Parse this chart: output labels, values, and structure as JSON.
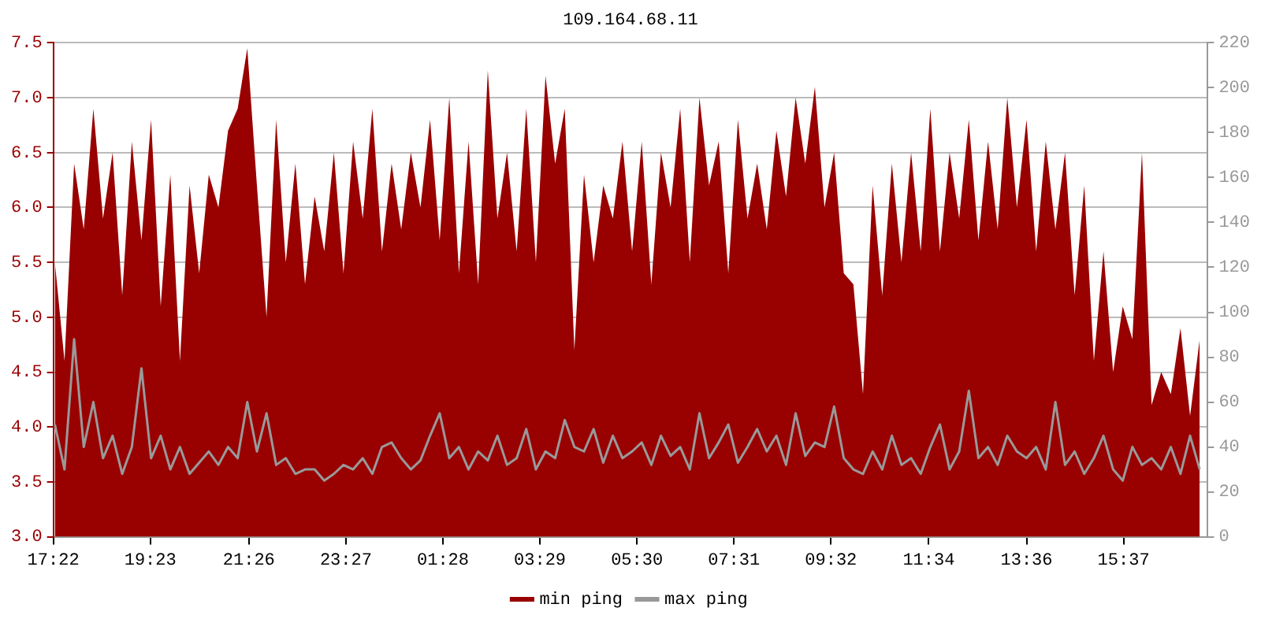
{
  "chart_data": {
    "type": "area",
    "title": "109.164.68.11",
    "x": [
      "--01-01T17:24",
      "--01-01T17:36",
      "--01-01T17:48",
      "--01-01T18:00",
      "--01-01T18:12",
      "--01-01T18:24",
      "--01-01T18:36",
      "--01-01T18:48",
      "--01-01T19:00",
      "--01-01T19:12",
      "--01-01T19:24",
      "--01-01T19:36",
      "--01-01T19:48",
      "--01-01T20:00",
      "--01-01T20:12",
      "--01-01T20:24",
      "--01-01T20:36",
      "--01-01T20:48",
      "--01-01T21:00",
      "--01-01T21:12",
      "--01-01T21:24",
      "--01-01T21:36",
      "--01-01T21:48",
      "--01-01T22:00",
      "--01-01T22:12",
      "--01-01T22:24",
      "--01-01T22:36",
      "--01-01T22:48",
      "--01-01T23:00",
      "--01-01T23:12",
      "--01-01T23:24",
      "--01-01T23:36",
      "--01-01T23:48",
      "--01-02T00:00",
      "--01-02T00:12",
      "--01-02T00:24",
      "--01-02T00:36",
      "--01-02T00:48",
      "--01-02T01:00",
      "--01-02T01:12",
      "--01-02T01:24",
      "--01-02T01:36",
      "--01-02T01:48",
      "--01-02T02:00",
      "--01-02T02:12",
      "--01-02T02:24",
      "--01-02T02:36",
      "--01-02T02:48",
      "--01-02T03:00",
      "--01-02T03:12",
      "--01-02T03:24",
      "--01-02T03:36",
      "--01-02T03:48",
      "--01-02T04:00",
      "--01-02T04:12",
      "--01-02T04:24",
      "--01-02T04:36",
      "--01-02T04:48",
      "--01-02T05:00",
      "--01-02T05:12",
      "--01-02T05:24",
      "--01-02T05:36",
      "--01-02T05:48",
      "--01-02T06:00",
      "--01-02T06:12",
      "--01-02T06:24",
      "--01-02T06:36",
      "--01-02T06:48",
      "--01-02T07:00",
      "--01-02T07:12",
      "--01-02T07:24",
      "--01-02T07:36",
      "--01-02T07:48",
      "--01-02T08:00",
      "--01-02T08:12",
      "--01-02T08:24",
      "--01-02T08:36",
      "--01-02T08:48",
      "--01-02T09:00",
      "--01-02T09:12",
      "--01-02T09:24",
      "--01-02T09:36",
      "--01-02T09:48",
      "--01-02T10:00",
      "--01-02T10:12",
      "--01-02T10:24",
      "--01-02T10:36",
      "--01-02T10:48",
      "--01-02T11:00",
      "--01-02T11:12",
      "--01-02T11:24",
      "--01-02T11:36",
      "--01-02T11:48",
      "--01-02T12:00",
      "--01-02T12:12",
      "--01-02T12:24",
      "--01-02T12:36",
      "--01-02T12:48",
      "--01-02T13:00",
      "--01-02T13:12",
      "--01-02T13:24",
      "--01-02T13:36",
      "--01-02T13:48",
      "--01-02T14:00",
      "--01-02T14:12",
      "--01-02T14:24",
      "--01-02T14:36",
      "--01-02T14:48",
      "--01-02T15:00",
      "--01-02T15:12",
      "--01-02T15:24",
      "--01-02T15:36",
      "--01-02T15:48",
      "--01-02T16:00",
      "--01-02T16:12",
      "--01-02T16:24",
      "--01-02T16:36",
      "--01-02T16:48",
      "--01-02T17:00",
      "--01-02T17:12"
    ],
    "series": [
      {
        "name": "min ping",
        "color": "#990000",
        "values": [
          5.5,
          4.6,
          6.4,
          5.8,
          6.9,
          5.9,
          6.5,
          5.2,
          6.6,
          5.7,
          6.8,
          5.1,
          6.3,
          4.6,
          6.2,
          5.4,
          6.3,
          6.0,
          6.7,
          6.9,
          7.45,
          6.2,
          5.0,
          6.8,
          5.5,
          6.4,
          5.3,
          6.1,
          5.6,
          6.5,
          5.4,
          6.6,
          5.9,
          6.9,
          5.6,
          6.4,
          5.8,
          6.5,
          6.0,
          6.8,
          5.7,
          7.0,
          5.4,
          6.6,
          5.3,
          7.25,
          5.9,
          6.5,
          5.6,
          6.9,
          5.5,
          7.2,
          6.4,
          6.9,
          4.7,
          6.3,
          5.5,
          6.2,
          5.9,
          6.6,
          5.6,
          6.6,
          5.3,
          6.5,
          6.0,
          6.9,
          5.5,
          7.0,
          6.2,
          6.6,
          5.4,
          6.8,
          5.9,
          6.4,
          5.8,
          6.7,
          6.1,
          7.0,
          6.4,
          7.1,
          6.0,
          6.5,
          5.4,
          5.3,
          4.3,
          6.2,
          5.2,
          6.4,
          5.5,
          6.5,
          5.6,
          6.9,
          5.6,
          6.5,
          5.9,
          6.8,
          5.7,
          6.6,
          5.8,
          7.0,
          6.0,
          6.8,
          5.6,
          6.6,
          5.8,
          6.5,
          5.2,
          6.2,
          4.6,
          5.6,
          4.5,
          5.1,
          4.8,
          6.5,
          4.2,
          4.5,
          4.3,
          4.9,
          4.1,
          4.8
        ]
      },
      {
        "name": "max ping",
        "type": "line",
        "axis": "y2",
        "color": "#999999",
        "values": [
          50,
          30,
          88,
          40,
          60,
          35,
          45,
          28,
          40,
          75,
          35,
          45,
          30,
          40,
          28,
          33,
          38,
          32,
          40,
          35,
          60,
          38,
          55,
          32,
          35,
          28,
          30,
          30,
          25,
          28,
          32,
          30,
          35,
          28,
          40,
          42,
          35,
          30,
          34,
          45,
          55,
          35,
          40,
          30,
          38,
          34,
          45,
          32,
          35,
          48,
          30,
          38,
          35,
          52,
          40,
          38,
          48,
          33,
          45,
          35,
          38,
          42,
          32,
          45,
          36,
          40,
          30,
          55,
          35,
          42,
          50,
          33,
          40,
          48,
          38,
          45,
          32,
          55,
          36,
          42,
          40,
          58,
          35,
          30,
          28,
          38,
          30,
          45,
          32,
          35,
          28,
          40,
          50,
          30,
          38,
          65,
          35,
          40,
          32,
          45,
          38,
          35,
          40,
          30,
          60,
          32,
          38,
          28,
          35,
          45,
          30,
          25,
          40,
          32,
          35,
          30,
          40,
          28,
          45,
          30
        ]
      }
    ],
    "xlim": [
      "--01-01T17:22",
      "--01-02T17:22"
    ],
    "xticks": [
      {
        "value": "--01-01T17:22",
        "label": "17:22"
      },
      {
        "value": "--01-01T19:23",
        "label": "19:23"
      },
      {
        "value": "--01-01T21:26",
        "label": "21:26"
      },
      {
        "value": "--01-01T23:27",
        "label": "23:27"
      },
      {
        "value": "--01-02T01:28",
        "label": "01:28"
      },
      {
        "value": "--01-02T03:29",
        "label": "03:29"
      },
      {
        "value": "--01-02T05:30",
        "label": "05:30"
      },
      {
        "value": "--01-02T07:31",
        "label": "07:31"
      },
      {
        "value": "--01-02T09:32",
        "label": "09:32"
      },
      {
        "value": "--01-02T11:34",
        "label": "11:34"
      },
      {
        "value": "--01-02T13:36",
        "label": "13:36"
      },
      {
        "value": "--01-02T15:37",
        "label": "15:37"
      }
    ],
    "ylim": [
      3.0,
      7.5
    ],
    "yticks": [
      {
        "value": 3,
        "label": "3.0"
      },
      3.5,
      {
        "value": 4,
        "label": "4.0"
      },
      4.5,
      {
        "value": 5,
        "label": "5.0"
      },
      5.5,
      {
        "value": 6,
        "label": "6.0"
      },
      6.5,
      {
        "value": 7,
        "label": "7.0"
      },
      7.5
    ],
    "y2lim": [
      0,
      220
    ],
    "y2ticks": [
      0,
      20,
      40,
      60,
      80,
      100,
      120,
      140,
      160,
      180,
      200,
      220
    ],
    "grid": "y",
    "legend": "bottom",
    "marker": "none",
    "line_style": "solid"
  }
}
